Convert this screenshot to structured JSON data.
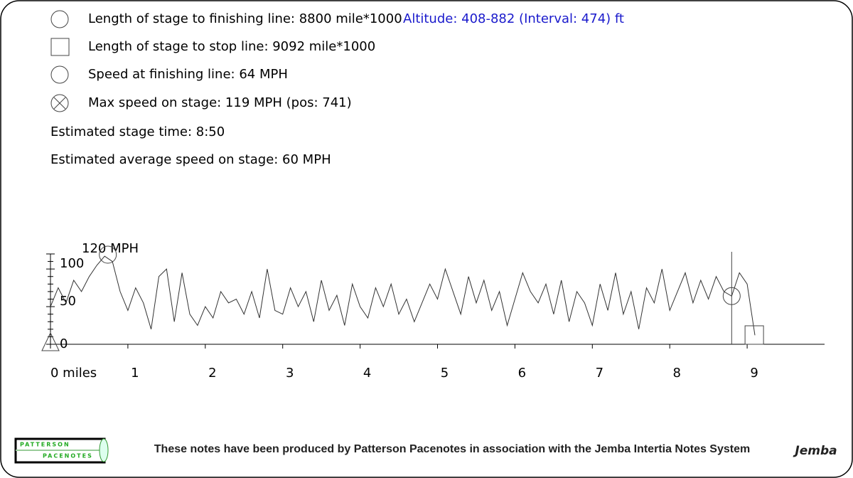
{
  "legend": [
    "Length of stage to finishing line: 8800 mile*1000",
    "Length of stage to stop line: 9092 mile*1000",
    "Speed at finishing line: 64 MPH",
    "Max speed on stage: 119 MPH (pos: 741)"
  ],
  "info": [
    "Estimated stage time: 8:50",
    "Estimated average speed on stage: 60 MPH"
  ],
  "footer": {
    "logo_top": "PATTERSON",
    "logo_bottom": "PACENOTES",
    "text": "These notes have been produced by Patterson Pacenotes in association with the Jemba Intertia Notes System",
    "brand": "Jemba"
  },
  "chart_data": {
    "type": "line",
    "annotation": "Altitude: 408-882 (Interval: 474) ft",
    "x": [
      0,
      0.1,
      0.2,
      0.3,
      0.4,
      0.5,
      0.6,
      0.7,
      0.8,
      0.9,
      1,
      1.1,
      1.2,
      1.3,
      1.4,
      1.5,
      1.6,
      1.7,
      1.8,
      1.9,
      2,
      2.1,
      2.2,
      2.3,
      2.4,
      2.5,
      2.6,
      2.7,
      2.8,
      2.9,
      3,
      3.1,
      3.2,
      3.3,
      3.4,
      3.5,
      3.6,
      3.7,
      3.8,
      3.9,
      4,
      4.1,
      4.2,
      4.3,
      4.4,
      4.5,
      4.6,
      4.7,
      4.8,
      4.9,
      5,
      5.1,
      5.2,
      5.3,
      5.4,
      5.5,
      5.6,
      5.7,
      5.8,
      5.9,
      6,
      6.1,
      6.2,
      6.3,
      6.4,
      6.5,
      6.6,
      6.7,
      6.8,
      6.9,
      7,
      7.1,
      7.2,
      7.3,
      7.4,
      7.5,
      7.6,
      7.7,
      7.8,
      7.9,
      8,
      8.1,
      8.2,
      8.3,
      8.4,
      8.5,
      8.6,
      8.7,
      8.8,
      8.9,
      9,
      9.1
    ],
    "series": [
      {
        "color": "#333333",
        "values": [
          50,
          75,
          55,
          85,
          70,
          90,
          105,
          117,
          110,
          70,
          45,
          75,
          55,
          20,
          90,
          100,
          30,
          95,
          40,
          25,
          50,
          35,
          70,
          55,
          60,
          40,
          70,
          35,
          100,
          45,
          40,
          75,
          50,
          70,
          30,
          85,
          45,
          65,
          25,
          80,
          50,
          35,
          75,
          50,
          80,
          40,
          60,
          30,
          55,
          80,
          60,
          100,
          70,
          40,
          90,
          55,
          85,
          45,
          70,
          25,
          60,
          95,
          70,
          55,
          80,
          40,
          85,
          30,
          70,
          55,
          25,
          80,
          45,
          95,
          40,
          70,
          20,
          75,
          55,
          100,
          45,
          70,
          95,
          55,
          85,
          60,
          90,
          70,
          64,
          95,
          80,
          12
        ]
      }
    ],
    "markers": {
      "max": {
        "x": 0.741,
        "y": 119
      },
      "finish": {
        "x": 8.8,
        "y": 64
      },
      "stop": {
        "x": 9.092,
        "y": 0
      }
    },
    "xlim": [
      0,
      10
    ],
    "ylim": [
      0,
      120
    ],
    "xticks": [
      {
        "value": 0,
        "label": "0 miles"
      },
      1,
      2,
      3,
      4,
      5,
      6,
      7,
      8,
      9
    ],
    "yticks": [
      0,
      50,
      100,
      {
        "value": 120,
        "label": "120 MPH"
      }
    ],
    "yminorticks": [
      10,
      20,
      30,
      40,
      60,
      70,
      80,
      90,
      110
    ]
  }
}
